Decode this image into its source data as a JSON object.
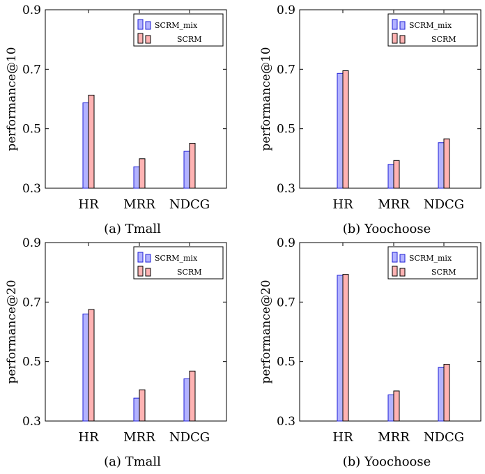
{
  "colors": {
    "scrm_mix_fill": "#b3b3ff",
    "scrm_mix_stroke": "#1f1fd6",
    "scrm_fill": "#ffb3b3",
    "scrm_stroke": "#000000",
    "axis": "#000000"
  },
  "chart_data": [
    {
      "type": "bar",
      "categories": [
        "HR",
        "MRR",
        "NDCG"
      ],
      "series": [
        {
          "name": "SCRM_mix",
          "values": [
            0.587,
            0.372,
            0.424
          ]
        },
        {
          "name": "SCRM",
          "values": [
            0.613,
            0.399,
            0.451
          ]
        }
      ],
      "ylabel": "performance@10",
      "ylim": [
        0.3,
        0.9
      ],
      "yticks": [
        "0.3",
        "0.5",
        "0.7",
        "0.9"
      ],
      "caption": "(a) Tmall",
      "legend": "top-right"
    },
    {
      "type": "bar",
      "categories": [
        "HR",
        "MRR",
        "NDCG"
      ],
      "series": [
        {
          "name": "SCRM_mix",
          "values": [
            0.686,
            0.38,
            0.453
          ]
        },
        {
          "name": "SCRM",
          "values": [
            0.695,
            0.393,
            0.466
          ]
        }
      ],
      "ylabel": "performance@10",
      "ylim": [
        0.3,
        0.9
      ],
      "yticks": [
        "0.3",
        "0.5",
        "0.7",
        "0.9"
      ],
      "caption": "(b) Yoochoose",
      "legend": "top-right"
    },
    {
      "type": "bar",
      "categories": [
        "HR",
        "MRR",
        "NDCG"
      ],
      "series": [
        {
          "name": "SCRM_mix",
          "values": [
            0.66,
            0.377,
            0.442
          ]
        },
        {
          "name": "SCRM",
          "values": [
            0.675,
            0.405,
            0.468
          ]
        }
      ],
      "ylabel": "performance@20",
      "ylim": [
        0.3,
        0.9
      ],
      "yticks": [
        "0.3",
        "0.5",
        "0.7",
        "0.9"
      ],
      "caption": "(a) Tmall",
      "legend": "top-right"
    },
    {
      "type": "bar",
      "categories": [
        "HR",
        "MRR",
        "NDCG"
      ],
      "series": [
        {
          "name": "SCRM_mix",
          "values": [
            0.79,
            0.388,
            0.48
          ]
        },
        {
          "name": "SCRM",
          "values": [
            0.793,
            0.401,
            0.491
          ]
        }
      ],
      "ylabel": "performance@20",
      "ylim": [
        0.3,
        0.9
      ],
      "yticks": [
        "0.3",
        "0.5",
        "0.7",
        "0.9"
      ],
      "caption": "(b) Yoochoose",
      "legend": "top-right"
    }
  ]
}
